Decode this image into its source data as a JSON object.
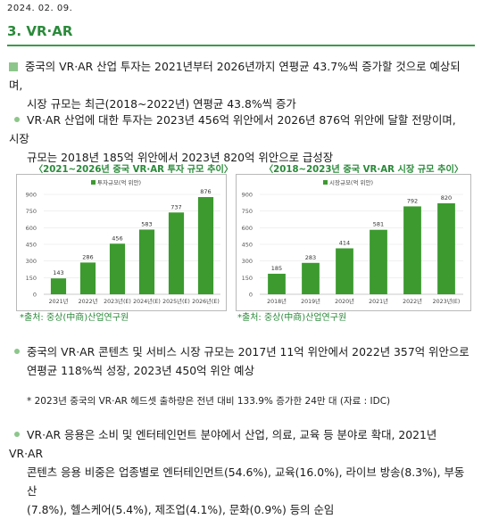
{
  "date": "2024. 02. 09.",
  "section_title": "3. VR·AR",
  "summary": {
    "line1": "중국의 VR·AR 산업 투자는 2021년부터 2026년까지 연평균 43.7%씩 증가할 것으로 예상되며,",
    "line2": "시장 규모는 최근(2018~2022년) 연평균 43.8%씩 증가"
  },
  "bullet1": {
    "line1": "VR·AR 산업에 대한 투자는 2023년 456억 위안에서 2026년 876억 위안에 달할 전망이며, 시장",
    "line2": "규모는 2018년 185억 위안에서 2023년 820억 위안으로 급성장"
  },
  "charts": {
    "left": {
      "title": "〈2021~2026년 중국 VR·AR 투자 규모 추이〉",
      "source": "*출처: 중상(中商)산업연구원"
    },
    "right": {
      "title": "〈2018~2023년 중국 VR·AR 시장 규모 추이〉",
      "source": "*출처: 중상(中商)산업연구원"
    }
  },
  "chart_data": [
    {
      "type": "bar",
      "title": "〈2021~2026년 중국 VR·AR 투자 규모 추이〉",
      "legend": "투자규모(억 위안)",
      "categories": [
        "2021년",
        "2022년",
        "2023년(E)",
        "2024년(E)",
        "2025년(E)",
        "2026년(E)"
      ],
      "values": [
        143,
        286,
        456,
        583,
        737,
        876
      ],
      "yticks": [
        0,
        150,
        300,
        450,
        600,
        750,
        900
      ],
      "ylim": [
        0,
        900
      ],
      "color": "#3c9a2f",
      "legend_position": "top"
    },
    {
      "type": "bar",
      "title": "〈2018~2023년 중국 VR·AR 시장 규모 추이〉",
      "legend": "시장규모(억 위안)",
      "categories": [
        "2018년",
        "2019년",
        "2020년",
        "2021년",
        "2022년",
        "2023년(E)"
      ],
      "values": [
        185,
        283,
        414,
        581,
        792,
        820
      ],
      "yticks": [
        0,
        150,
        300,
        450,
        600,
        750,
        900
      ],
      "ylim": [
        0,
        900
      ],
      "color": "#3c9a2f",
      "legend_position": "top"
    }
  ],
  "bullet2": {
    "line1": "중국의 VR·AR 콘텐츠 및 서비스 시장 규모는 2017년 11억 위안에서 2022년 357억 위안으로",
    "line2": "연평균 118%씩 성장, 2023년 450억 위안 예상"
  },
  "note": "* 2023년 중국의 VR·AR 헤드셋 출하량은 전년 대비 133.9% 증가한 24만 대 (자료 : IDC)",
  "bullet3": {
    "line1": "VR·AR 응용은 소비 및 엔터테인먼트 분야에서 산업, 의료, 교육 등 분야로 확대, 2021년 VR·AR",
    "line2": "콘텐츠 응용 비중은 업종별로 엔터테인먼트(54.6%), 교육(16.0%), 라이브 방송(8.3%), 부동산",
    "line3": "(7.8%), 헬스케어(5.4%), 제조업(4.1%), 문화(0.9%) 등의 순임"
  }
}
